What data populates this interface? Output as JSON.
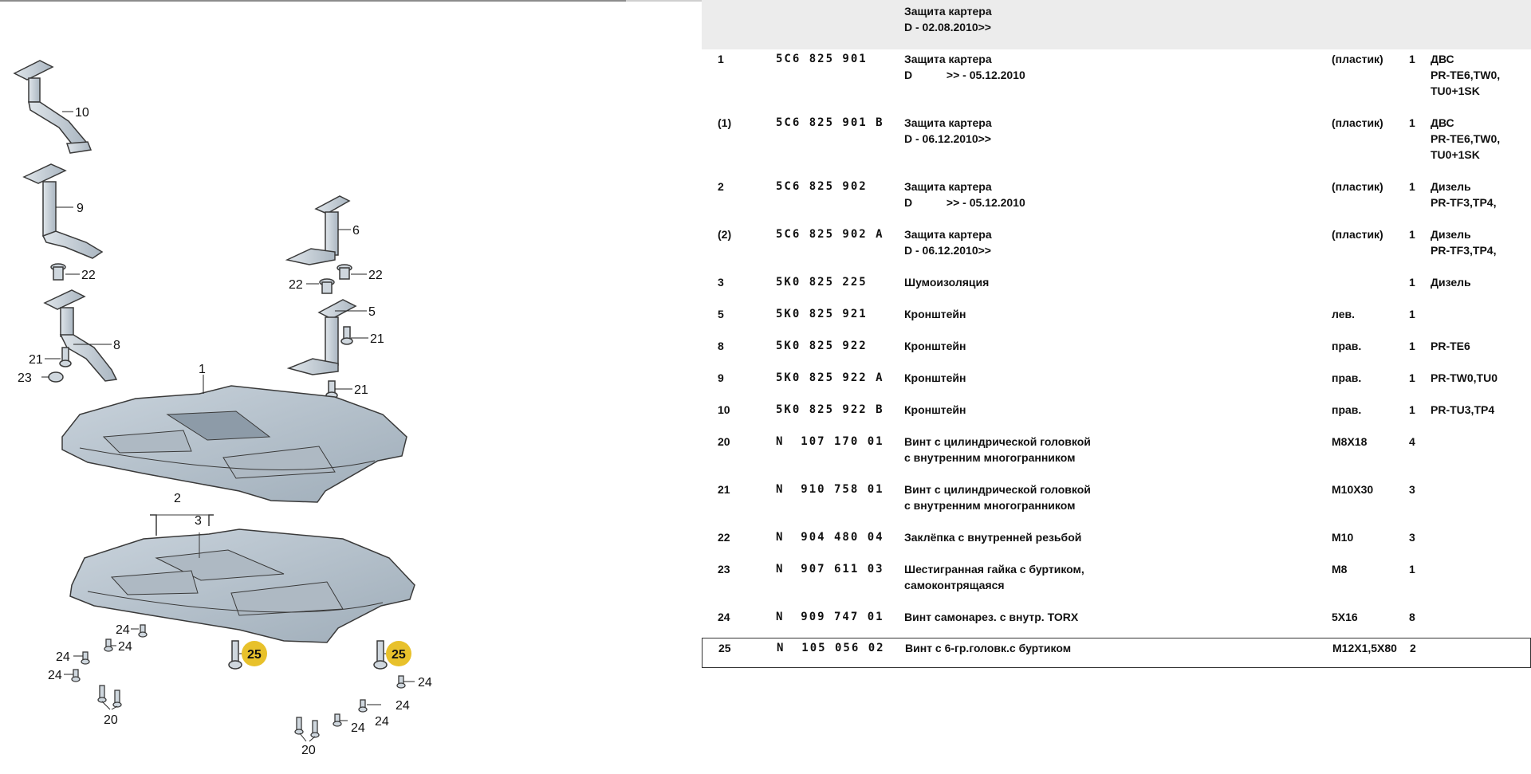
{
  "diagram": {
    "callouts": [
      "10",
      "9",
      "22",
      "8",
      "21",
      "23",
      "1",
      "6",
      "22",
      "22",
      "5",
      "21",
      "21",
      "2",
      "3",
      "24",
      "24",
      "24",
      "24",
      "24",
      "20",
      "25",
      "25",
      "24",
      "24",
      "24",
      "24",
      "20"
    ]
  },
  "table": {
    "header": {
      "desc_line1": "Защита картера",
      "desc_line2": "D - 02.08.2010>>"
    },
    "rows": [
      {
        "pos": "1",
        "part": "5C6 825 901",
        "desc": [
          "Защита картера",
          "D           >> - 05.12.2010"
        ],
        "note": "(пластик)",
        "qty": "1",
        "model": [
          "ДВС",
          "PR-TE6,TW0,",
          "TU0+1SK"
        ]
      },
      {
        "pos": "(1)",
        "part": "5C6 825 901 B",
        "desc": [
          "Защита картера",
          "D - 06.12.2010>>"
        ],
        "note": "(пластик)",
        "qty": "1",
        "model": [
          "ДВС",
          "PR-TE6,TW0,",
          "TU0+1SK"
        ]
      },
      {
        "pos": "2",
        "part": "5C6 825 902",
        "desc": [
          "Защита картера",
          "D           >> - 05.12.2010"
        ],
        "note": "(пластик)",
        "qty": "1",
        "model": [
          "Дизель",
          "PR-TF3,TP4,"
        ]
      },
      {
        "pos": "(2)",
        "part": "5C6 825 902 A",
        "desc": [
          "Защита картера",
          "D - 06.12.2010>>"
        ],
        "note": "(пластик)",
        "qty": "1",
        "model": [
          "Дизель",
          "PR-TF3,TP4,"
        ]
      },
      {
        "pos": "3",
        "part": "5K0 825 225",
        "desc": [
          "Шумоизоляция"
        ],
        "note": "",
        "qty": "1",
        "model": [
          "Дизель"
        ]
      },
      {
        "pos": "5",
        "part": "5K0 825 921",
        "desc": [
          "Кронштейн"
        ],
        "note": "лев.",
        "qty": "1",
        "model": [
          ""
        ]
      },
      {
        "pos": "8",
        "part": "5K0 825 922",
        "desc": [
          "Кронштейн"
        ],
        "note": "прав.",
        "qty": "1",
        "model": [
          "PR-TE6"
        ]
      },
      {
        "pos": "9",
        "part": "5K0 825 922 A",
        "desc": [
          "Кронштейн"
        ],
        "note": "прав.",
        "qty": "1",
        "model": [
          "PR-TW0,TU0"
        ]
      },
      {
        "pos": "10",
        "part": "5K0 825 922 B",
        "desc": [
          "Кронштейн"
        ],
        "note": "прав.",
        "qty": "1",
        "model": [
          "PR-TU3,TP4"
        ]
      },
      {
        "pos": "20",
        "part": "N  107 170 01",
        "desc": [
          "Винт с цилиндрической головкой",
          "с внутренним многогранником"
        ],
        "note": "M8X18",
        "qty": "4",
        "model": [
          ""
        ]
      },
      {
        "pos": "21",
        "part": "N  910 758 01",
        "desc": [
          "Винт с цилиндрической головкой",
          "с внутренним многогранником"
        ],
        "note": "M10X30",
        "qty": "3",
        "model": [
          ""
        ]
      },
      {
        "pos": "22",
        "part": "N  904 480 04",
        "desc": [
          "Заклёпка с внутренней резьбой"
        ],
        "note": "M10",
        "qty": "3",
        "model": [
          ""
        ]
      },
      {
        "pos": "23",
        "part": "N  907 611 03",
        "desc": [
          "Шестигранная гайка с буртиком,",
          "самоконтрящаяся"
        ],
        "note": "M8",
        "qty": "1",
        "model": [
          ""
        ]
      },
      {
        "pos": "24",
        "part": "N  909 747 01",
        "desc": [
          "Винт самонарез. с внутр. TORX"
        ],
        "note": "5X16",
        "qty": "8",
        "model": [
          ""
        ]
      },
      {
        "pos": "25",
        "part": "N  105 056 02",
        "desc": [
          "Винт с 6-гр.головк.с буртиком"
        ],
        "note": "M12X1,5X80",
        "qty": "2",
        "model": [
          ""
        ]
      }
    ]
  }
}
